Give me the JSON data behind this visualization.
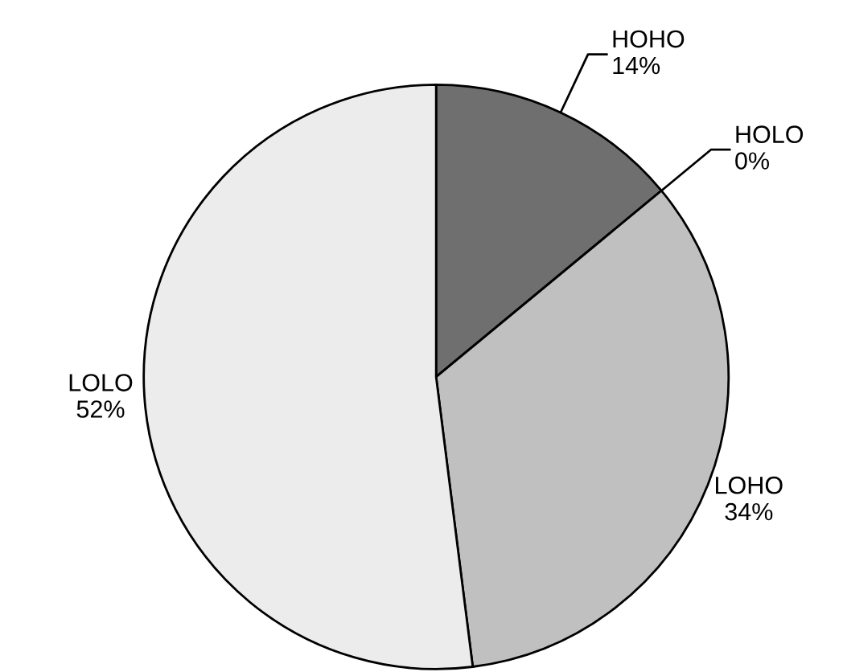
{
  "chart_data": {
    "type": "pie",
    "categories": [
      "HOHO",
      "HOLO",
      "LOHO",
      "LOLO"
    ],
    "values": [
      14,
      0,
      34,
      52
    ],
    "value_labels": [
      "14%",
      "0%",
      "34%",
      "52%"
    ],
    "colors": [
      "#6f6f6f",
      "#9a9a9a",
      "#c0c0c0",
      "#ececec"
    ],
    "legend": false
  }
}
